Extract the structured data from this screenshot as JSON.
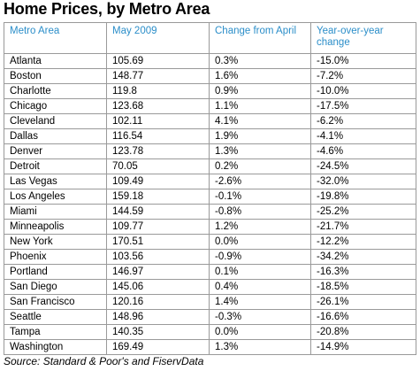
{
  "title": "Home Prices, by Metro Area",
  "header": {
    "col_metro": "Metro Area",
    "col_may": "May 2009",
    "col_change_april": "Change from April",
    "col_yoy": "Year-over-year change"
  },
  "rows": [
    {
      "metro": "Atlanta",
      "may": "105.69",
      "change_april": "0.3%",
      "yoy": "-15.0%"
    },
    {
      "metro": "Boston",
      "may": "148.77",
      "change_april": "1.6%",
      "yoy": "-7.2%"
    },
    {
      "metro": "Charlotte",
      "may": "119.8",
      "change_april": "0.9%",
      "yoy": "-10.0%"
    },
    {
      "metro": "Chicago",
      "may": "123.68",
      "change_april": "1.1%",
      "yoy": "-17.5%"
    },
    {
      "metro": "Cleveland",
      "may": "102.11",
      "change_april": "4.1%",
      "yoy": "-6.2%"
    },
    {
      "metro": "Dallas",
      "may": "116.54",
      "change_april": "1.9%",
      "yoy": "-4.1%"
    },
    {
      "metro": "Denver",
      "may": "123.78",
      "change_april": "1.3%",
      "yoy": "-4.6%"
    },
    {
      "metro": "Detroit",
      "may": "70.05",
      "change_april": "0.2%",
      "yoy": "-24.5%"
    },
    {
      "metro": "Las Vegas",
      "may": "109.49",
      "change_april": "-2.6%",
      "yoy": "-32.0%"
    },
    {
      "metro": "Los Angeles",
      "may": "159.18",
      "change_april": "-0.1%",
      "yoy": "-19.8%"
    },
    {
      "metro": "Miami",
      "may": "144.59",
      "change_april": "-0.8%",
      "yoy": "-25.2%"
    },
    {
      "metro": "Minneapolis",
      "may": "109.77",
      "change_april": "1.2%",
      "yoy": "-21.7%"
    },
    {
      "metro": "New York",
      "may": "170.51",
      "change_april": "0.0%",
      "yoy": "-12.2%"
    },
    {
      "metro": "Phoenix",
      "may": "103.56",
      "change_april": "-0.9%",
      "yoy": "-34.2%"
    },
    {
      "metro": "Portland",
      "may": "146.97",
      "change_april": "0.1%",
      "yoy": "-16.3%"
    },
    {
      "metro": "San Diego",
      "may": "145.06",
      "change_april": "0.4%",
      "yoy": "-18.5%"
    },
    {
      "metro": "San Francisco",
      "may": "120.16",
      "change_april": "1.4%",
      "yoy": "-26.1%"
    },
    {
      "metro": "Seattle",
      "may": "148.96",
      "change_april": "-0.3%",
      "yoy": "-16.6%"
    },
    {
      "metro": "Tampa",
      "may": "140.35",
      "change_april": "0.0%",
      "yoy": "-20.8%"
    },
    {
      "metro": "Washington",
      "may": "169.49",
      "change_april": "1.3%",
      "yoy": "-14.9%"
    }
  ],
  "source": "Source: Standard & Poor's and FiservData",
  "colors": {
    "header_text": "#2b8ec9",
    "border": "#9a9a9a"
  }
}
